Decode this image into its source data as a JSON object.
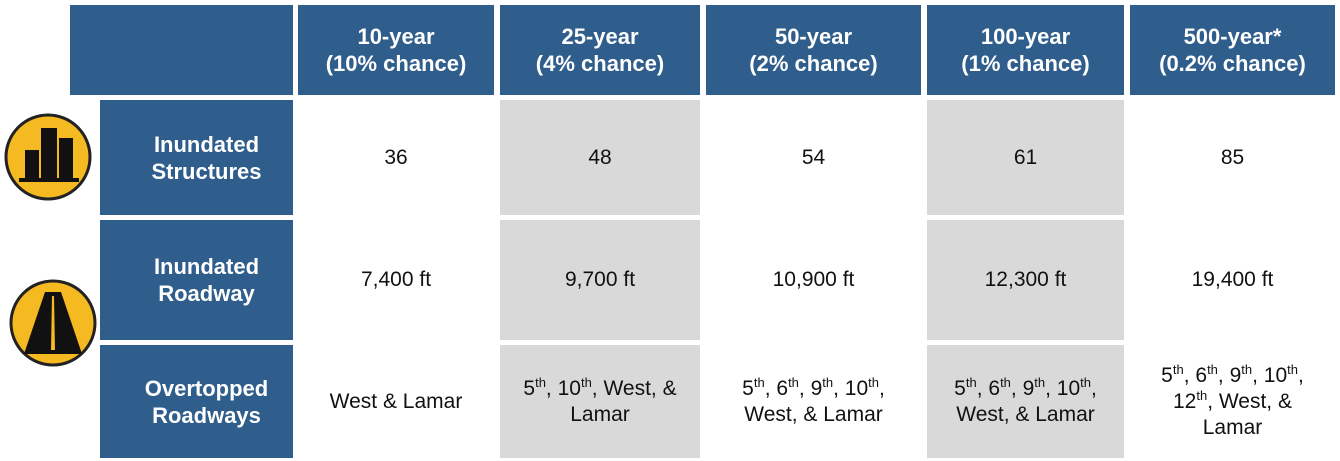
{
  "table": {
    "columns": [
      [
        "10-year",
        "(10% chance)"
      ],
      [
        "25-year",
        "(4% chance)"
      ],
      [
        "50-year",
        "(2% chance)"
      ],
      [
        "100-year",
        "(1% chance)"
      ],
      [
        "500-year*",
        "(0.2% chance)"
      ]
    ],
    "rows": [
      {
        "label": [
          "Inundated",
          "Structures"
        ],
        "cells": [
          [
            {
              "t": "36"
            }
          ],
          [
            {
              "t": "48"
            }
          ],
          [
            {
              "t": "54"
            }
          ],
          [
            {
              "t": "61"
            }
          ],
          [
            {
              "t": "85"
            }
          ]
        ]
      },
      {
        "label": [
          "Inundated",
          "Roadway"
        ],
        "cells": [
          [
            {
              "t": "7,400 ft"
            }
          ],
          [
            {
              "t": "9,700 ft"
            }
          ],
          [
            {
              "t": "10,900 ft"
            }
          ],
          [
            {
              "t": "12,300 ft"
            }
          ],
          [
            {
              "t": "19,400 ft"
            }
          ]
        ]
      },
      {
        "label": [
          "Overtopped",
          "Roadways"
        ],
        "cells": [
          [
            {
              "t": "West & Lamar"
            }
          ],
          [
            {
              "t": "5"
            },
            {
              "sup": "th"
            },
            {
              "t": ", 10"
            },
            {
              "sup": "th"
            },
            {
              "t": ", West, & Lamar"
            }
          ],
          [
            {
              "t": "5"
            },
            {
              "sup": "th"
            },
            {
              "t": ", 6"
            },
            {
              "sup": "th"
            },
            {
              "t": ", 9"
            },
            {
              "sup": "th"
            },
            {
              "t": ", 10"
            },
            {
              "sup": "th"
            },
            {
              "t": ", West, & Lamar"
            }
          ],
          [
            {
              "t": "5"
            },
            {
              "sup": "th"
            },
            {
              "t": ", 6"
            },
            {
              "sup": "th"
            },
            {
              "t": ", 9"
            },
            {
              "sup": "th"
            },
            {
              "t": ", 10"
            },
            {
              "sup": "th"
            },
            {
              "t": ", West, & Lamar"
            }
          ],
          [
            {
              "t": "5"
            },
            {
              "sup": "th"
            },
            {
              "t": ", 6"
            },
            {
              "sup": "th"
            },
            {
              "t": ", 9"
            },
            {
              "sup": "th"
            },
            {
              "t": ", 10"
            },
            {
              "sup": "th"
            },
            {
              "t": ", 12"
            },
            {
              "sup": "th"
            },
            {
              "t": ", West, & Lamar"
            }
          ]
        ]
      }
    ]
  }
}
